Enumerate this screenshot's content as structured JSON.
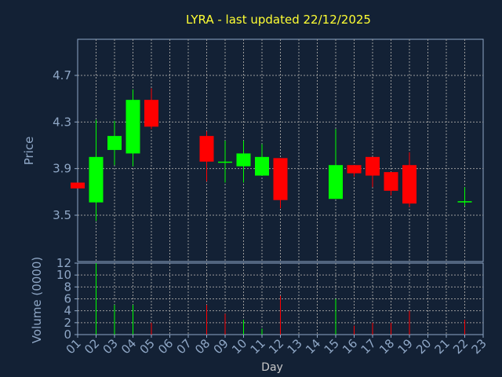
{
  "chart_data": {
    "type": "candlestick",
    "title": "LYRA - last updated 22/12/2025",
    "xlabel": "Day",
    "ylabel_price": "Price",
    "ylabel_volume": "Volume (0000)",
    "x_ticks": [
      "01",
      "02",
      "03",
      "04",
      "05",
      "06",
      "07",
      "08",
      "09",
      "10",
      "11",
      "12",
      "13",
      "14",
      "15",
      "16",
      "17",
      "18",
      "19",
      "20",
      "21",
      "22",
      "23"
    ],
    "price_ticks": [
      "3.5",
      "3.9",
      "4.3",
      "4.7"
    ],
    "volume_ticks": [
      "0",
      "2",
      "4",
      "6",
      "8",
      "10",
      "12"
    ],
    "price_ylim": [
      3.5,
      5.0
    ],
    "volume_ylim": [
      0,
      12
    ],
    "grid": true,
    "colors": {
      "background": "#132135",
      "axis": "#8fa7c6",
      "grid": "#9a9a9a",
      "up": "#00ff00",
      "down": "#ff0000",
      "title": "#ffff33"
    },
    "candles": [
      {
        "day": 1,
        "open": 3.78,
        "high": 3.78,
        "low": 3.73,
        "close": 3.73
      },
      {
        "day": 2,
        "open": 3.61,
        "high": 4.32,
        "low": 3.45,
        "close": 4.0
      },
      {
        "day": 3,
        "open": 4.06,
        "high": 4.31,
        "low": 3.93,
        "close": 4.18
      },
      {
        "day": 4,
        "open": 4.03,
        "high": 4.58,
        "low": 3.92,
        "close": 4.49
      },
      {
        "day": 5,
        "open": 4.49,
        "high": 4.59,
        "low": 4.24,
        "close": 4.26
      },
      {
        "day": 8,
        "open": 4.18,
        "high": 4.22,
        "low": 3.79,
        "close": 3.96
      },
      {
        "day": 9,
        "open": 3.96,
        "high": 4.14,
        "low": 3.78,
        "close": 3.96
      },
      {
        "day": 10,
        "open": 3.92,
        "high": 4.14,
        "low": 3.78,
        "close": 4.03
      },
      {
        "day": 11,
        "open": 3.84,
        "high": 4.11,
        "low": 3.84,
        "close": 4.0
      },
      {
        "day": 12,
        "open": 3.99,
        "high": 3.99,
        "low": 3.56,
        "close": 3.63
      },
      {
        "day": 15,
        "open": 3.64,
        "high": 4.24,
        "low": 3.64,
        "close": 3.93
      },
      {
        "day": 16,
        "open": 3.93,
        "high": 3.93,
        "low": 3.83,
        "close": 3.86
      },
      {
        "day": 17,
        "open": 4.0,
        "high": 4.0,
        "low": 3.74,
        "close": 3.84
      },
      {
        "day": 18,
        "open": 3.87,
        "high": 3.87,
        "low": 3.67,
        "close": 3.71
      },
      {
        "day": 19,
        "open": 3.93,
        "high": 4.04,
        "low": 3.57,
        "close": 3.6
      },
      {
        "day": 22,
        "open": 3.62,
        "high": 3.74,
        "low": 3.58,
        "close": 3.62
      }
    ],
    "volume": [
      {
        "day": 2,
        "value": 12,
        "dir": "up"
      },
      {
        "day": 3,
        "value": 5,
        "dir": "up"
      },
      {
        "day": 4,
        "value": 5,
        "dir": "up"
      },
      {
        "day": 5,
        "value": 2,
        "dir": "down"
      },
      {
        "day": 8,
        "value": 5,
        "dir": "down"
      },
      {
        "day": 9,
        "value": 3.5,
        "dir": "down"
      },
      {
        "day": 10,
        "value": 2.5,
        "dir": "up"
      },
      {
        "day": 11,
        "value": 1,
        "dir": "up"
      },
      {
        "day": 12,
        "value": 6.5,
        "dir": "down"
      },
      {
        "day": 15,
        "value": 6,
        "dir": "up"
      },
      {
        "day": 16,
        "value": 1.5,
        "dir": "down"
      },
      {
        "day": 17,
        "value": 2,
        "dir": "down"
      },
      {
        "day": 18,
        "value": 2,
        "dir": "down"
      },
      {
        "day": 19,
        "value": 4,
        "dir": "down"
      },
      {
        "day": 22,
        "value": 2.5,
        "dir": "down"
      }
    ]
  }
}
